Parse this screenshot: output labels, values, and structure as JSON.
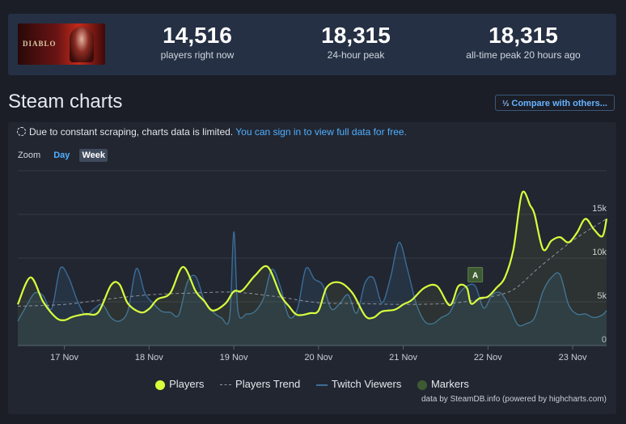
{
  "game": {
    "image_alt": "Diablo IV",
    "logo_text": "DIABLO"
  },
  "stats": [
    {
      "value": "14,516",
      "label": "players right now"
    },
    {
      "value": "18,315",
      "label": "24-hour peak"
    },
    {
      "value": "18,315",
      "label": "all-time peak 20 hours ago"
    }
  ],
  "heading": "Steam charts",
  "compare": {
    "icon": "1/2/3",
    "label": "Compare with others..."
  },
  "notice": {
    "text": "Due to constant scraping, charts data is limited.",
    "link": "You can sign in to view full data for free."
  },
  "zoom": {
    "label": "Zoom",
    "options": [
      "Day",
      "Week"
    ],
    "selected": "Week"
  },
  "colors": {
    "players": "#d8ff3c",
    "trend": "#8d939c",
    "twitch": "#3a6d98",
    "markers": "#3e5a33"
  },
  "chart_data": {
    "type": "line",
    "x_tick_labels": [
      "17 Nov",
      "18 Nov",
      "19 Nov",
      "20 Nov",
      "21 Nov",
      "22 Nov",
      "23 Nov"
    ],
    "y_tick_labels": [
      "0",
      "5k",
      "10k",
      "15k"
    ],
    "ylim": [
      0,
      20000
    ],
    "xlim": [
      16.45,
      23.4
    ],
    "grid": true,
    "legend_position": "bottom",
    "series": [
      {
        "name": "Players",
        "x": [
          16.45,
          16.6,
          16.75,
          16.9,
          17.0,
          17.1,
          17.25,
          17.4,
          17.55,
          17.65,
          17.75,
          17.9,
          18.0,
          18.1,
          18.25,
          18.4,
          18.55,
          18.65,
          18.75,
          18.9,
          19.0,
          19.1,
          19.25,
          19.4,
          19.55,
          19.65,
          19.75,
          19.9,
          20.0,
          20.1,
          20.25,
          20.4,
          20.55,
          20.65,
          20.75,
          20.9,
          21.0,
          21.1,
          21.25,
          21.4,
          21.55,
          21.65,
          21.75,
          21.8,
          21.9,
          22.0,
          22.1,
          22.2,
          22.3,
          22.4,
          22.5,
          22.55,
          22.65,
          22.75,
          22.85,
          22.95,
          23.05,
          23.15,
          23.25,
          23.35,
          23.4
        ],
        "values": [
          4700,
          7800,
          5000,
          3200,
          2900,
          3300,
          3600,
          3800,
          6900,
          7000,
          4800,
          3800,
          4200,
          5300,
          6000,
          9000,
          6200,
          5100,
          4000,
          4800,
          6200,
          6300,
          8000,
          9000,
          5800,
          4500,
          3500,
          3700,
          4000,
          6700,
          7200,
          6000,
          3400,
          3200,
          3900,
          4100,
          4700,
          5200,
          6600,
          6800,
          4600,
          6800,
          6600,
          4800,
          5400,
          5600,
          6600,
          7800,
          11000,
          17400,
          16000,
          15000,
          11000,
          12000,
          12400,
          11800,
          12900,
          14500,
          13300,
          12500,
          14500
        ]
      },
      {
        "name": "Players Trend",
        "x": [
          16.45,
          17.0,
          17.5,
          18.0,
          18.5,
          19.0,
          19.5,
          20.0,
          20.5,
          21.0,
          21.5,
          21.8,
          22.0,
          22.3,
          22.6,
          23.0,
          23.4
        ],
        "values": [
          4500,
          4700,
          5300,
          5800,
          6000,
          6100,
          5600,
          4900,
          4800,
          4700,
          4800,
          5100,
          5500,
          6400,
          8900,
          12000,
          14500
        ]
      },
      {
        "name": "Twitch Viewers",
        "x": [
          16.45,
          16.55,
          16.65,
          16.75,
          16.85,
          16.95,
          17.05,
          17.15,
          17.25,
          17.35,
          17.45,
          17.55,
          17.65,
          17.75,
          17.85,
          17.95,
          18.05,
          18.15,
          18.25,
          18.35,
          18.45,
          18.55,
          18.65,
          18.75,
          18.85,
          18.95,
          19.0,
          19.05,
          19.15,
          19.25,
          19.35,
          19.45,
          19.55,
          19.65,
          19.75,
          19.85,
          19.95,
          20.05,
          20.15,
          20.25,
          20.35,
          20.45,
          20.55,
          20.65,
          20.75,
          20.85,
          20.95,
          21.05,
          21.15,
          21.25,
          21.35,
          21.45,
          21.55,
          21.65,
          21.75,
          21.85,
          21.95,
          22.05,
          22.15,
          22.25,
          22.35,
          22.45,
          22.55,
          22.65,
          22.75,
          22.85,
          22.95,
          23.05,
          23.15,
          23.25,
          23.35,
          23.4
        ],
        "values": [
          2800,
          4500,
          6000,
          5700,
          4200,
          8800,
          7800,
          5200,
          3500,
          4200,
          4700,
          3200,
          2800,
          4000,
          8800,
          6000,
          4800,
          3900,
          3800,
          3500,
          7200,
          7900,
          5200,
          3900,
          3200,
          3200,
          13000,
          3900,
          3600,
          3900,
          5400,
          8700,
          6700,
          3300,
          4200,
          8800,
          7600,
          6900,
          4200,
          4800,
          5800,
          3700,
          7200,
          7700,
          4900,
          7800,
          11800,
          8700,
          4900,
          2800,
          2500,
          3200,
          3800,
          5800,
          6800,
          6800,
          4300,
          5800,
          6000,
          4500,
          2400,
          2500,
          3200,
          6200,
          7800,
          8100,
          4700,
          3600,
          3600,
          3200,
          3500,
          4000
        ]
      }
    ],
    "markers": [
      {
        "x": 21.85,
        "y": 8100,
        "label": "A"
      }
    ],
    "legend": [
      "Players",
      "Players Trend",
      "Twitch Viewers",
      "Markers"
    ],
    "credit": "data by SteamDB.info (powered by highcharts.com)"
  }
}
